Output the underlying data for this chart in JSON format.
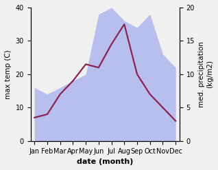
{
  "months": [
    "Jan",
    "Feb",
    "Mar",
    "Apr",
    "May",
    "Jun",
    "Jul",
    "Aug",
    "Sep",
    "Oct",
    "Nov",
    "Dec"
  ],
  "temperature": [
    7,
    8,
    14,
    18,
    23,
    22,
    29,
    35,
    20,
    14,
    10,
    6
  ],
  "precipitation": [
    8,
    7,
    8,
    9,
    10,
    19,
    20,
    18,
    17,
    19,
    13,
    11
  ],
  "temp_color": "#8B2252",
  "precip_fill_color": "#b8bfee",
  "left_ylim": [
    0,
    40
  ],
  "right_ylim": [
    0,
    20
  ],
  "left_yticks": [
    0,
    10,
    20,
    30,
    40
  ],
  "right_yticks": [
    0,
    5,
    10,
    15,
    20
  ],
  "left_ylabel": "max temp (C)",
  "right_ylabel": "med. precipitation\n(kg/m2)",
  "xlabel": "date (month)",
  "xlabel_fontsize": 8,
  "ylabel_fontsize": 7.5,
  "tick_fontsize": 7,
  "linewidth": 1.6,
  "background_color": "#f0f0f0"
}
